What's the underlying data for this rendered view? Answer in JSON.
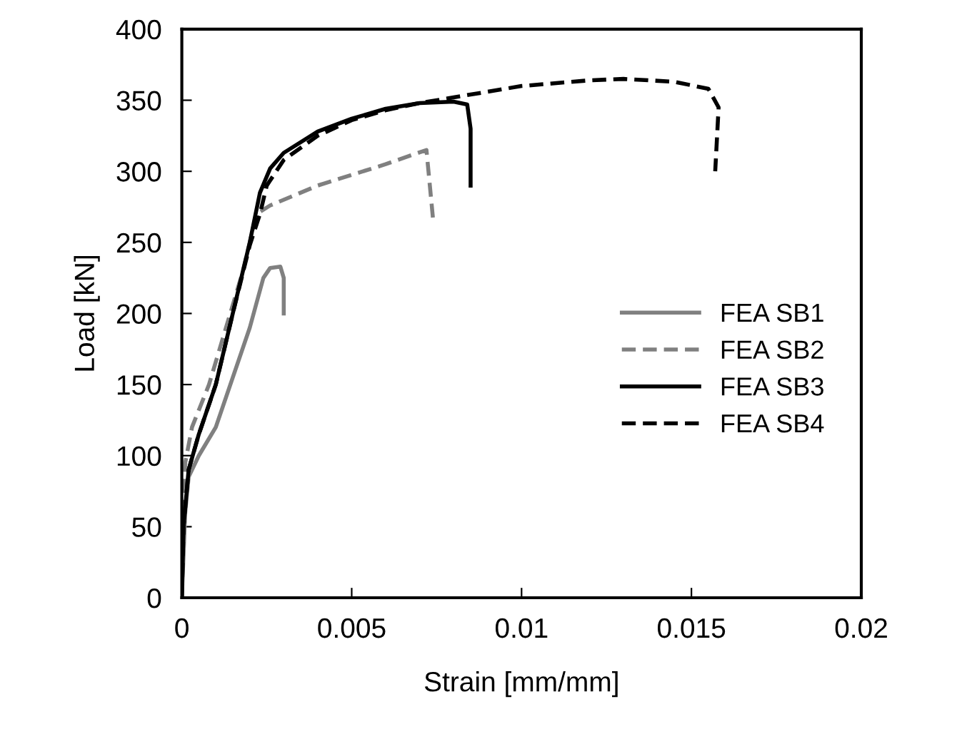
{
  "chart_data": {
    "type": "line",
    "xlabel": "Strain [mm/mm]",
    "ylabel": "Load [kN]",
    "xlim": [
      0,
      0.02
    ],
    "xticks": [
      0,
      0.005,
      0.01,
      0.015,
      0.02
    ],
    "ylim": [
      0,
      400
    ],
    "yticks": [
      0,
      50,
      100,
      150,
      200,
      250,
      300,
      350,
      400
    ],
    "grid": false,
    "legend": "right",
    "marker": "none",
    "series": [
      {
        "name": "FEA SB1",
        "color": "#808080",
        "line_style": "solid",
        "x": [
          0,
          0.0001,
          0.0002,
          0.0005,
          0.001,
          0.0015,
          0.002,
          0.0024,
          0.0026,
          0.0029,
          0.003,
          0.003
        ],
        "values": [
          0,
          60,
          85,
          100,
          120,
          155,
          190,
          225,
          232,
          233,
          225,
          200
        ]
      },
      {
        "name": "FEA SB2",
        "color": "#808080",
        "line_style": "dashed",
        "x": [
          0,
          5e-05,
          0.0001,
          0.0003,
          0.0008,
          0.0013,
          0.0018,
          0.0022,
          0.0026,
          0.004,
          0.006,
          0.0072,
          0.0073,
          0.0074
        ],
        "values": [
          0,
          60,
          95,
          120,
          150,
          190,
          230,
          270,
          276,
          290,
          305,
          315,
          290,
          265
        ]
      },
      {
        "name": "FEA SB3",
        "color": "#000000",
        "line_style": "solid",
        "x": [
          0,
          5e-05,
          0.0002,
          0.0005,
          0.001,
          0.0015,
          0.002,
          0.0023,
          0.0026,
          0.003,
          0.004,
          0.005,
          0.006,
          0.007,
          0.008,
          0.0084,
          0.0085,
          0.0085
        ],
        "values": [
          0,
          50,
          90,
          115,
          150,
          200,
          250,
          285,
          302,
          313,
          328,
          337,
          344,
          348,
          349,
          347,
          330,
          290
        ]
      },
      {
        "name": "FEA SB4",
        "color": "#000000",
        "line_style": "dashed",
        "x": [
          0,
          5e-05,
          0.0002,
          0.0005,
          0.001,
          0.0015,
          0.002,
          0.0023,
          0.0025,
          0.003,
          0.004,
          0.005,
          0.006,
          0.007,
          0.008,
          0.01,
          0.012,
          0.013,
          0.0145,
          0.0155,
          0.0158,
          0.0157
        ],
        "values": [
          0,
          50,
          90,
          115,
          150,
          200,
          248,
          270,
          290,
          308,
          325,
          336,
          343,
          348,
          352,
          360,
          364,
          365,
          363,
          358,
          345,
          300
        ]
      }
    ]
  }
}
